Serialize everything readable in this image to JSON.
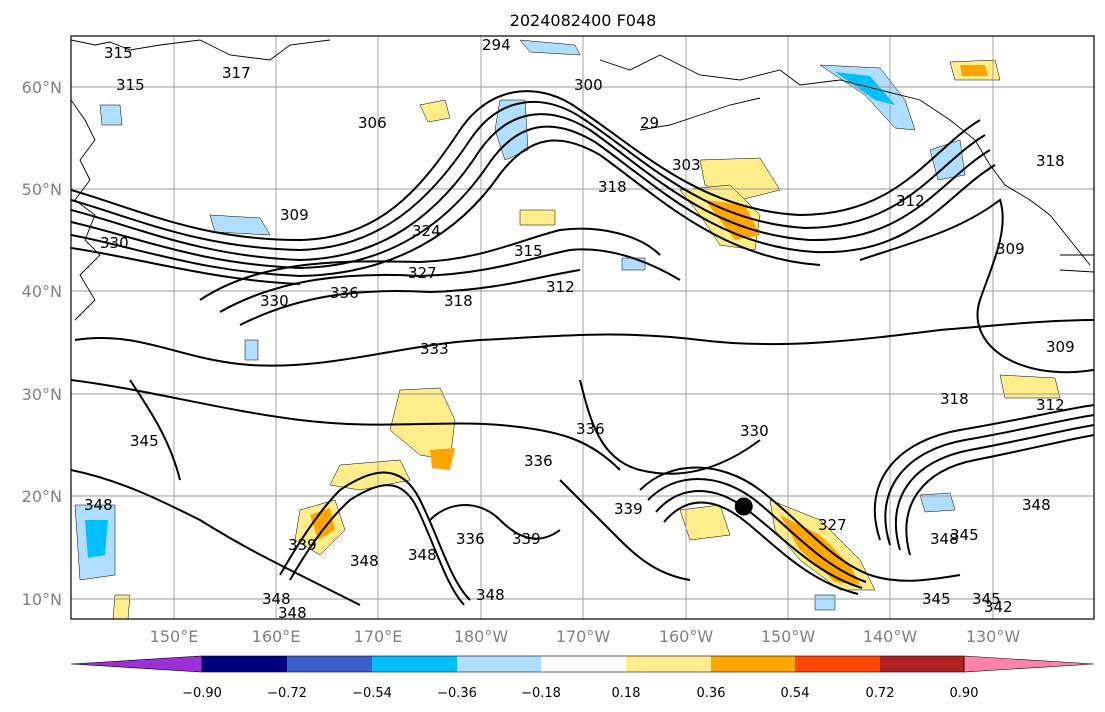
{
  "title": "2024082400 F048",
  "lat_labels": [
    "10°N",
    "20°N",
    "30°N",
    "40°N",
    "50°N",
    "60°N"
  ],
  "lon_labels": [
    "150°E",
    "160°E",
    "170°E",
    "180°W",
    "170°W",
    "160°W",
    "150°W",
    "140°W",
    "130°W"
  ],
  "colorbar": {
    "tick_labels": [
      "−0.90",
      "−0.72",
      "−0.54",
      "−0.36",
      "−0.18",
      "0.18",
      "0.36",
      "0.54",
      "0.72",
      "0.90"
    ],
    "colors": [
      "#9b30d9",
      "#000080",
      "#3a5fcd",
      "#00bfff",
      "#afdeff",
      "#ffffff",
      "#ffec8b",
      "#ffa500",
      "#ff4500",
      "#b22222",
      "#ff82ab"
    ]
  },
  "contour_labels": [
    "315",
    "315",
    "317",
    "294",
    "300",
    "306",
    "29",
    "303",
    "318",
    "312",
    "318",
    "309",
    "309",
    "324",
    "315",
    "312",
    "330",
    "327",
    "330",
    "336",
    "318",
    "333",
    "309",
    "318",
    "312",
    "330",
    "336",
    "336",
    "345",
    "348",
    "339",
    "339",
    "336",
    "327",
    "348",
    "339",
    "348",
    "348",
    "348",
    "348",
    "348",
    "345",
    "345",
    "345",
    "342",
    "348"
  ],
  "marker": {
    "name": "storm-center",
    "lat": 19,
    "lon": -159.5
  }
}
